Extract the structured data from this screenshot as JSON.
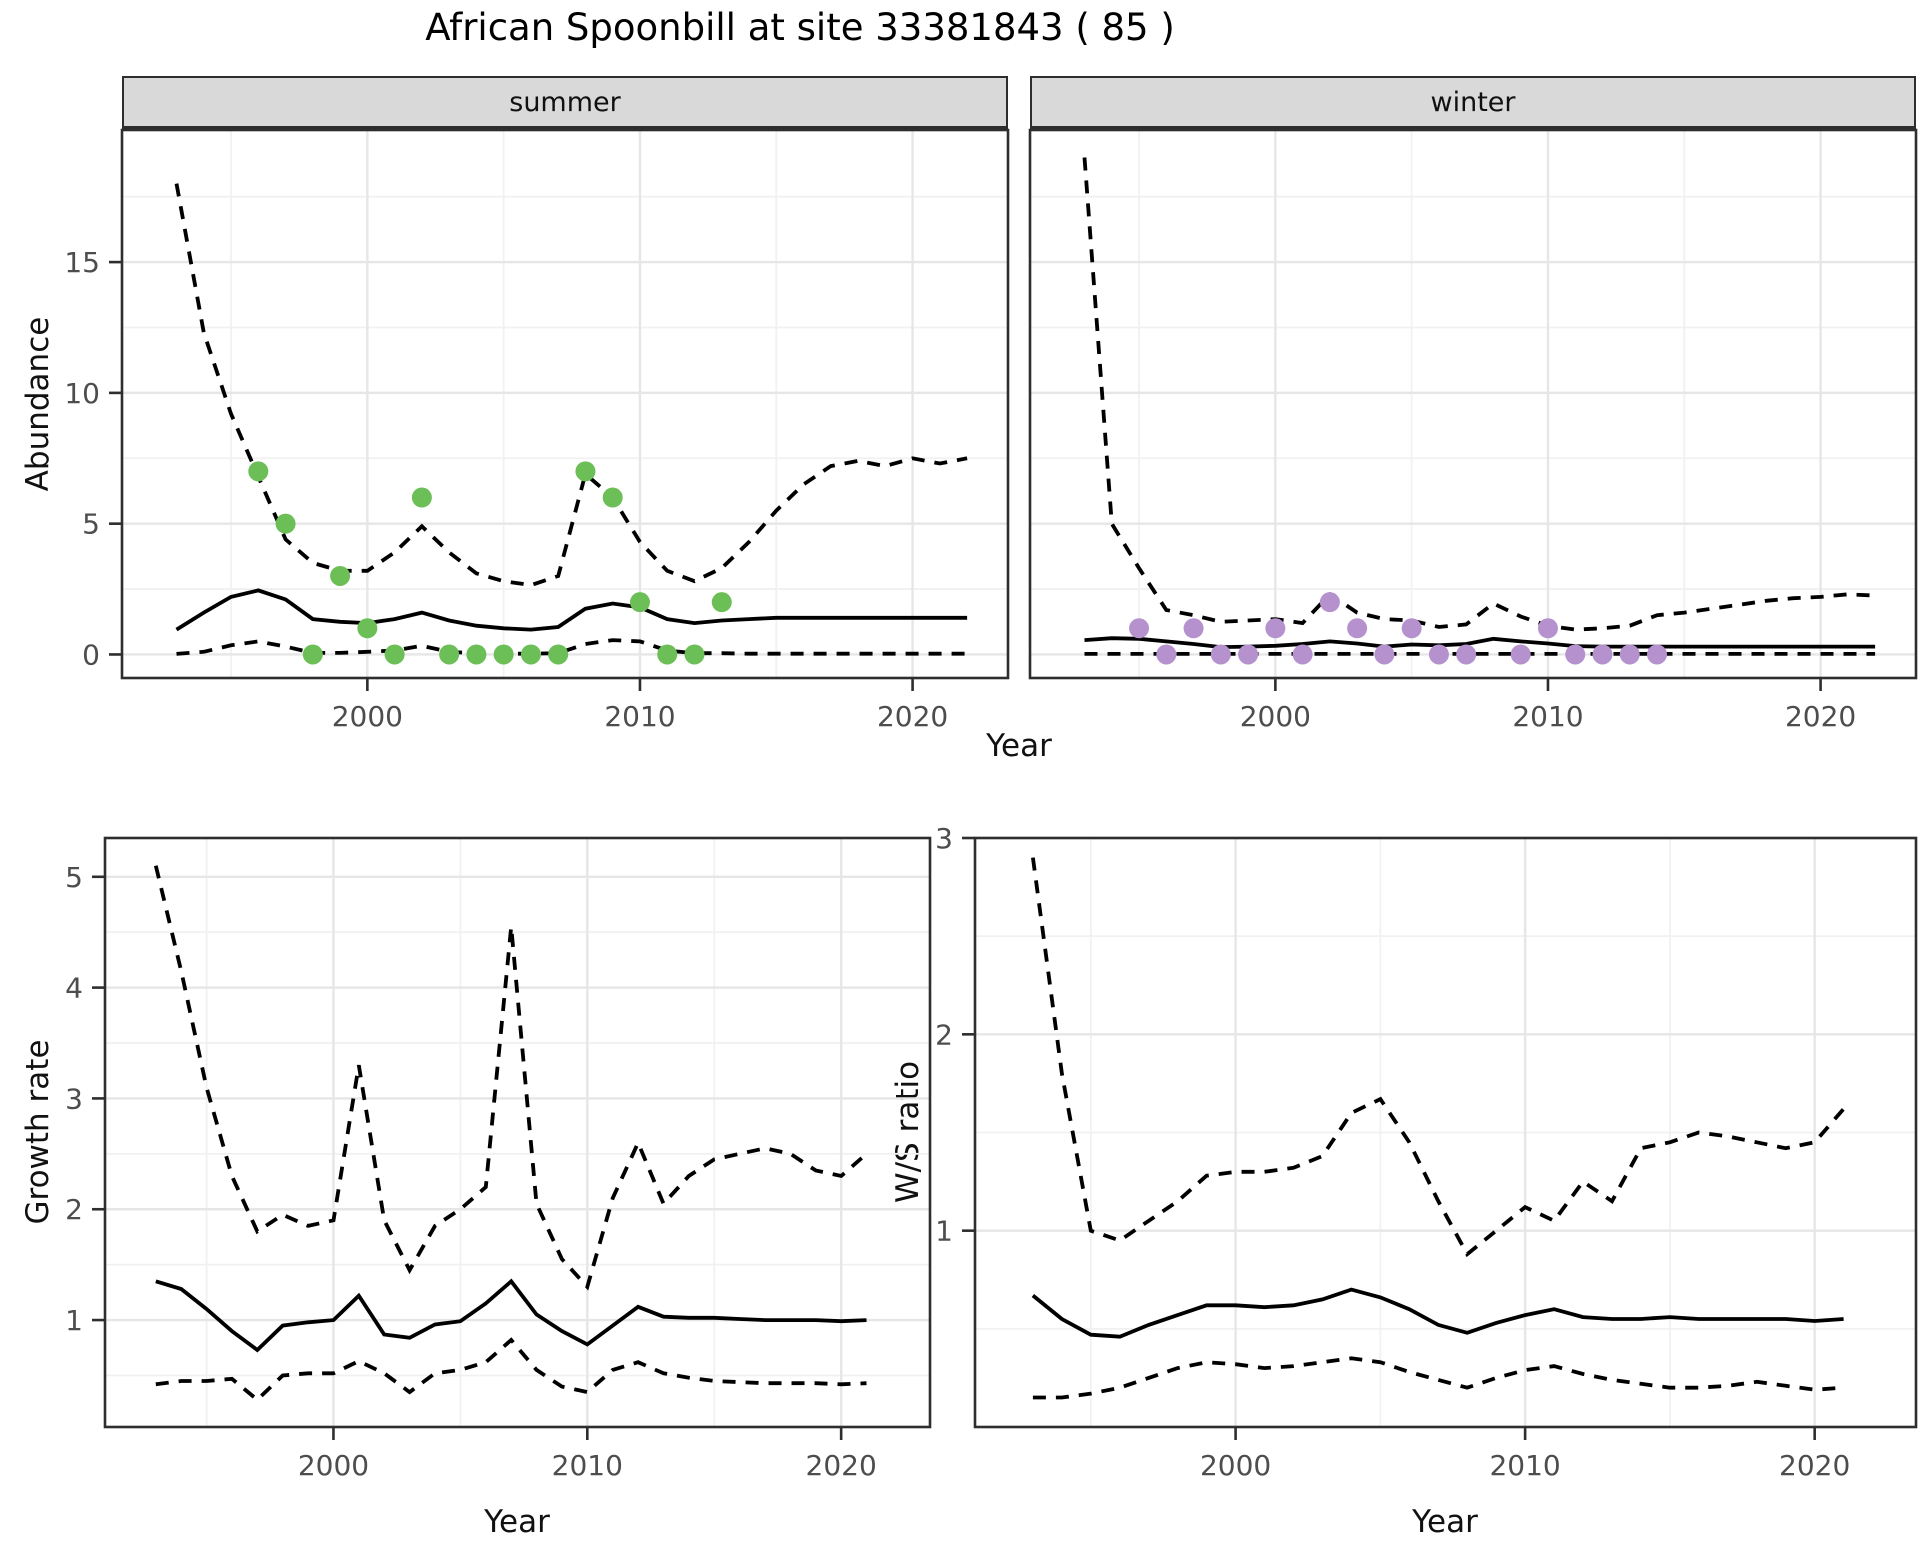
{
  "title": "African Spoonbill at site 33381843 ( 85 )",
  "colors": {
    "summer_point": "#6cbe57",
    "winter_point": "#b592ce",
    "line": "#000000",
    "strip_bg": "#d9d9d9",
    "panel_border": "#2e2e2e",
    "grid_major": "#e6e6e6",
    "grid_minor": "#f1f1f1",
    "tick_label": "#4d4d4d",
    "axis_title": "#111111"
  },
  "axes": {
    "x_label": "Year",
    "xticks": [
      2000,
      2010,
      2020
    ],
    "x_minor": [
      1995,
      2005,
      2015
    ],
    "xlim": [
      1991,
      2023.5
    ]
  },
  "chart_data": [
    {
      "id": "abundance",
      "type": "line+scatter",
      "ylabel": "Abundance",
      "xlabel": "Year",
      "ylim": [
        -0.9,
        20.05
      ],
      "yticks": [
        0,
        5,
        10,
        15
      ],
      "y_minor": [
        2.5,
        7.5,
        12.5,
        17.5
      ],
      "years": [
        1993,
        1994,
        1995,
        1996,
        1997,
        1998,
        1999,
        2000,
        2001,
        2002,
        2003,
        2004,
        2005,
        2006,
        2007,
        2008,
        2009,
        2010,
        2011,
        2012,
        2013,
        2014,
        2015,
        2016,
        2017,
        2018,
        2019,
        2020,
        2021,
        2022
      ],
      "facets": [
        {
          "label": "summer",
          "point_color_key": "summer_point",
          "observed_years": [
            1996,
            1997,
            1998,
            1999,
            2000,
            2001,
            2002,
            2003,
            2004,
            2005,
            2006,
            2007,
            2008,
            2009,
            2010,
            2011,
            2012,
            2013
          ],
          "observed_counts": [
            7,
            5,
            0,
            3,
            1,
            0,
            6,
            0,
            0,
            0,
            0,
            0,
            7,
            6,
            2,
            0,
            0,
            2
          ],
          "fit": [
            0.95,
            1.6,
            2.2,
            2.45,
            2.1,
            1.35,
            1.25,
            1.2,
            1.35,
            1.6,
            1.3,
            1.1,
            1.0,
            0.95,
            1.05,
            1.75,
            1.95,
            1.8,
            1.35,
            1.2,
            1.3,
            1.35,
            1.4,
            1.4,
            1.4,
            1.4,
            1.4,
            1.4,
            1.4,
            1.4
          ],
          "ci_upper": [
            18,
            12.3,
            9.2,
            6.8,
            4.4,
            3.5,
            3.2,
            3.2,
            3.9,
            4.9,
            3.9,
            3.1,
            2.8,
            2.65,
            3.0,
            6.9,
            6.0,
            4.3,
            3.2,
            2.8,
            3.3,
            4.3,
            5.5,
            6.5,
            7.2,
            7.4,
            7.2,
            7.5,
            7.3,
            7.5
          ],
          "ci_lower": [
            0.02,
            0.1,
            0.35,
            0.5,
            0.3,
            0.06,
            0.06,
            0.1,
            0.15,
            0.33,
            0.1,
            0.05,
            0.03,
            0.03,
            0.05,
            0.4,
            0.55,
            0.5,
            0.15,
            0.05,
            0.05,
            0.03,
            0.03,
            0.03,
            0.03,
            0.03,
            0.03,
            0.03,
            0.03,
            0.03
          ]
        },
        {
          "label": "winter",
          "point_color_key": "winter_point",
          "observed_years": [
            1995,
            1996,
            1997,
            1998,
            1999,
            2000,
            2001,
            2002,
            2003,
            2004,
            2005,
            2006,
            2007,
            2009,
            2010,
            2011,
            2012,
            2013,
            2014
          ],
          "observed_counts": [
            1,
            0,
            1,
            0,
            0,
            1,
            0,
            2,
            1,
            0,
            1,
            0,
            0,
            0,
            1,
            0,
            0,
            0,
            0
          ],
          "fit": [
            0.55,
            0.62,
            0.6,
            0.5,
            0.4,
            0.28,
            0.3,
            0.33,
            0.4,
            0.5,
            0.42,
            0.3,
            0.38,
            0.35,
            0.4,
            0.6,
            0.5,
            0.42,
            0.32,
            0.3,
            0.3,
            0.3,
            0.3,
            0.3,
            0.3,
            0.3,
            0.3,
            0.3,
            0.3,
            0.3
          ],
          "ci_upper": [
            19,
            5,
            3.3,
            1.7,
            1.5,
            1.25,
            1.3,
            1.35,
            1.2,
            2.3,
            1.6,
            1.35,
            1.3,
            1.05,
            1.15,
            1.95,
            1.45,
            1.1,
            0.95,
            1.0,
            1.1,
            1.5,
            1.6,
            1.75,
            1.9,
            2.05,
            2.15,
            2.2,
            2.3,
            2.25
          ],
          "ci_lower": [
            0.02,
            0.02,
            0.02,
            0.02,
            0.02,
            0.02,
            0.02,
            0.02,
            0.02,
            0.02,
            0.02,
            0.02,
            0.02,
            0.02,
            0.02,
            0.02,
            0.02,
            0.02,
            0.02,
            0.02,
            0.02,
            0.02,
            0.02,
            0.02,
            0.02,
            0.02,
            0.02,
            0.02,
            0.02,
            0.02
          ]
        }
      ]
    },
    {
      "id": "growth_rate",
      "type": "line",
      "ylabel": "Growth rate",
      "xlabel": "Year",
      "ylim": [
        0.035,
        5.35
      ],
      "yticks": [
        1,
        2,
        3,
        4,
        5
      ],
      "y_minor": [
        0.5,
        1.5,
        2.5,
        3.5,
        4.5
      ],
      "years": [
        1993,
        1994,
        1995,
        1996,
        1997,
        1998,
        1999,
        2000,
        2001,
        2002,
        2003,
        2004,
        2005,
        2006,
        2007,
        2008,
        2009,
        2010,
        2011,
        2012,
        2013,
        2014,
        2015,
        2016,
        2017,
        2018,
        2019,
        2020,
        2021
      ],
      "estimate": [
        1.35,
        1.28,
        1.1,
        0.9,
        0.73,
        0.95,
        0.98,
        1.0,
        1.22,
        0.87,
        0.84,
        0.96,
        0.99,
        1.15,
        1.35,
        1.05,
        0.9,
        0.78,
        0.95,
        1.12,
        1.03,
        1.02,
        1.02,
        1.01,
        1.0,
        1.0,
        1.0,
        0.99,
        1.0
      ],
      "ci_upper": [
        5.1,
        4.15,
        3.1,
        2.3,
        1.8,
        1.95,
        1.85,
        1.9,
        3.3,
        1.9,
        1.45,
        1.85,
        2.0,
        2.2,
        4.55,
        2.05,
        1.55,
        1.3,
        2.1,
        2.6,
        2.05,
        2.3,
        2.45,
        2.5,
        2.55,
        2.5,
        2.35,
        2.3,
        2.5
      ],
      "ci_lower": [
        0.42,
        0.45,
        0.45,
        0.47,
        0.28,
        0.5,
        0.52,
        0.52,
        0.63,
        0.52,
        0.35,
        0.52,
        0.55,
        0.62,
        0.82,
        0.55,
        0.4,
        0.35,
        0.55,
        0.62,
        0.52,
        0.48,
        0.45,
        0.44,
        0.43,
        0.43,
        0.43,
        0.42,
        0.43
      ]
    },
    {
      "id": "ws_ratio",
      "type": "line",
      "ylabel": "W/S ratio",
      "xlabel": "Year",
      "ylim": [
        0,
        3
      ],
      "yticks": [
        1,
        2,
        3
      ],
      "y_minor": [
        0.5,
        1.5,
        2.5
      ],
      "years": [
        1993,
        1994,
        1995,
        1996,
        1997,
        1998,
        1999,
        2000,
        2001,
        2002,
        2003,
        2004,
        2005,
        2006,
        2007,
        2008,
        2009,
        2010,
        2011,
        2012,
        2013,
        2014,
        2015,
        2016,
        2017,
        2018,
        2019,
        2020,
        2021
      ],
      "estimate": [
        0.67,
        0.55,
        0.47,
        0.46,
        0.52,
        0.57,
        0.62,
        0.62,
        0.61,
        0.62,
        0.65,
        0.7,
        0.66,
        0.6,
        0.52,
        0.48,
        0.53,
        0.57,
        0.6,
        0.56,
        0.55,
        0.55,
        0.56,
        0.55,
        0.55,
        0.55,
        0.55,
        0.54,
        0.55
      ],
      "ci_upper": [
        2.9,
        1.8,
        1.0,
        0.95,
        1.05,
        1.15,
        1.28,
        1.3,
        1.3,
        1.32,
        1.38,
        1.6,
        1.67,
        1.45,
        1.15,
        0.88,
        1.0,
        1.12,
        1.05,
        1.25,
        1.15,
        1.42,
        1.45,
        1.5,
        1.48,
        1.45,
        1.42,
        1.45,
        1.62
      ],
      "ci_lower": [
        0.15,
        0.15,
        0.17,
        0.2,
        0.25,
        0.3,
        0.33,
        0.32,
        0.3,
        0.31,
        0.33,
        0.35,
        0.33,
        0.28,
        0.24,
        0.2,
        0.25,
        0.29,
        0.31,
        0.27,
        0.24,
        0.22,
        0.2,
        0.2,
        0.21,
        0.23,
        0.21,
        0.19,
        0.2
      ]
    }
  ]
}
